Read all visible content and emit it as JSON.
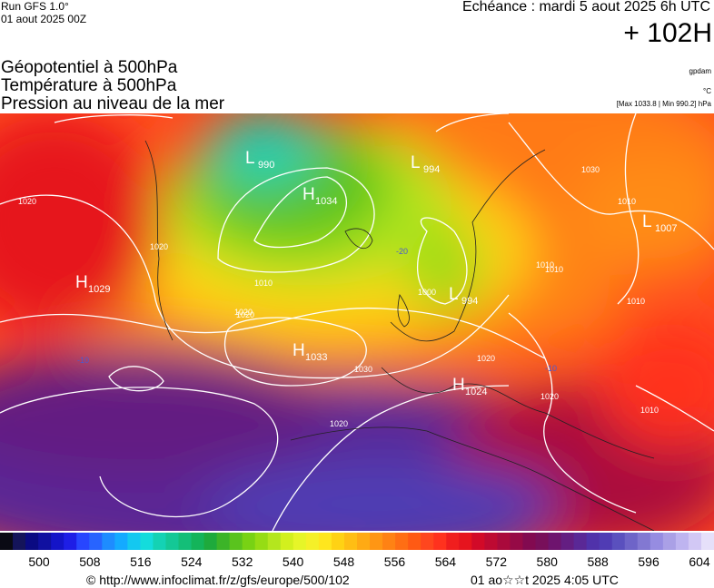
{
  "header": {
    "run": "Run GFS 1.0°",
    "run_date": "01 aout 2025 00Z",
    "echeance": "Echéance : mardi 5 aout 2025 6h UTC",
    "lead": "+ 102H",
    "titles": [
      "Géopotentiel à 500hPa",
      "Température à 500hPa",
      "Pression au niveau de la mer"
    ],
    "units": [
      "gpdam",
      "°C",
      "[Max 1033.8 | Min 990.2] hPa"
    ]
  },
  "map": {
    "centers": [
      {
        "kind": "L",
        "value": 990
      },
      {
        "kind": "L",
        "value": 994
      },
      {
        "kind": "H",
        "value": 1034
      },
      {
        "kind": "L",
        "value": 1007
      },
      {
        "kind": "H",
        "value": 1029
      },
      {
        "kind": "H",
        "value": 1033
      },
      {
        "kind": "L",
        "value": 994
      },
      {
        "kind": "H",
        "value": 1024
      }
    ],
    "isobar_labels": [
      1020,
      1020,
      1020,
      1010,
      1020,
      1030,
      1010,
      1000,
      1030,
      1020,
      1020,
      1010,
      1010,
      1010,
      1010,
      1020
    ],
    "temp_labels": [
      -20,
      -10,
      -10
    ]
  },
  "colorbar": {
    "ticks": [
      500,
      508,
      516,
      524,
      532,
      540,
      548,
      556,
      564,
      572,
      580,
      588,
      596,
      604
    ],
    "colors": [
      "#0a0a14",
      "#14145a",
      "#0a0a82",
      "#1010a0",
      "#1414c8",
      "#1e1ee6",
      "#2846ff",
      "#2864ff",
      "#1e8cff",
      "#14aaff",
      "#14c8f0",
      "#14dcdc",
      "#14d2b4",
      "#14c896",
      "#14be78",
      "#14b45a",
      "#1eaa3c",
      "#3cb428",
      "#5ac31e",
      "#78d214",
      "#96dc14",
      "#b4e61e",
      "#d2f01e",
      "#e6f528",
      "#f5f028",
      "#ffe61e",
      "#ffd214",
      "#ffbe14",
      "#ffaa14",
      "#ff9614",
      "#ff8214",
      "#ff6e14",
      "#ff5a14",
      "#ff461e",
      "#ff321e",
      "#f01e1e",
      "#e6141e",
      "#d20a28",
      "#be0a32",
      "#aa0a3c",
      "#960a46",
      "#820a50",
      "#780f5a",
      "#6e146e",
      "#641e82",
      "#5a2896",
      "#5032aa",
      "#503cb4",
      "#5a50be",
      "#6e64c8",
      "#8278d2",
      "#968ce1",
      "#aaa0e6",
      "#beb4f0",
      "#d2c8f5",
      "#e6e0fa"
    ]
  },
  "footer": {
    "source": "© http://www.infoclimat.fr/z/gfs/europe/500/102",
    "generated": "01 ao☆☆t 2025  4:05 UTC"
  }
}
